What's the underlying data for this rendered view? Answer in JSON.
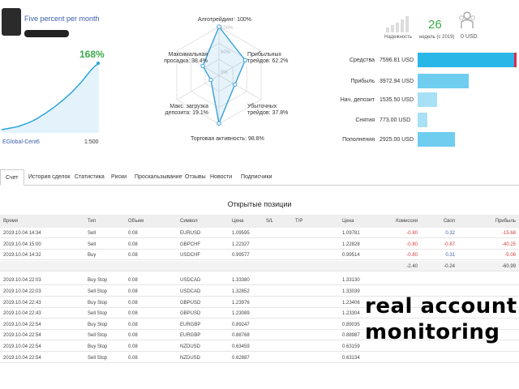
{
  "signal": {
    "title": "Five percent per month",
    "growth": "168%",
    "broker": "EGlobal-Cent6",
    "leverage": "1:500",
    "growth_curve": [
      0,
      2,
      4,
      6,
      9,
      13,
      17,
      22,
      28,
      35,
      42,
      50,
      58,
      67,
      76,
      86,
      96,
      108,
      120,
      134,
      148,
      160,
      168
    ]
  },
  "radar": {
    "labels": {
      "algo": "Алготрейдинг: 100%",
      "profit_trades": "Прибыльных трейдов: 62.2%",
      "loss_trades": "Убыточных трейдов: 37.8%",
      "activity": "Торговая активность: 98.8%",
      "deposit_load": "Макс. загрузка депозита: 19.1%",
      "drawdown": "Максимальная просадка: 38.4%"
    },
    "ring_labels": [
      "100%",
      "50%",
      "0%"
    ],
    "values": [
      1.0,
      0.622,
      0.378,
      0.988,
      0.191,
      0.384
    ],
    "color": "#3aa0d8"
  },
  "stats": {
    "reliability_label": "Надежность",
    "weeks_value": "26",
    "weeks_label": "недель (с 2019)",
    "subscribers_value": "0 USD",
    "accent": "#3caa4a"
  },
  "finance": [
    {
      "label": "Средства",
      "value": "7596.81 USD",
      "fraction": 1.0,
      "color": "#2bb6e8"
    },
    {
      "label": "Прибыль",
      "value": "3972.94 USD",
      "fraction": 0.52,
      "color": "#6fcdf0"
    },
    {
      "label": "Нач. депозит",
      "value": "1535.50 USD",
      "fraction": 0.2,
      "color": "#a8e0f6"
    },
    {
      "label": "Снятия",
      "value": "773.00 USD",
      "fraction": 0.1,
      "color": "#a8e0f6"
    },
    {
      "label": "Пополнения",
      "value": "2925.00 USD",
      "fraction": 0.38,
      "color": "#6fcdf0"
    }
  ],
  "tabs": [
    "Счет",
    "История сделок",
    "Статистика",
    "Риски",
    "Проскальзывание",
    "Отзывы",
    "Новости",
    "Подписчики"
  ],
  "positions_title": "Открытые позиции",
  "columns": [
    "Время",
    "Тип",
    "Объем",
    "Символ",
    "Цена",
    "S/L",
    "T/P",
    "Цена",
    "Комиссия",
    "Своп",
    "Прибыль"
  ],
  "open_positions": [
    [
      "2019.10.04 14:34",
      "Sell",
      "0.08",
      "EURUSD",
      "1.09595",
      "",
      "",
      "1.09781",
      "-0.80",
      "0.32",
      "-15.68"
    ],
    [
      "2019.10.04 15:00",
      "Sell",
      "0.08",
      "GBPCHF",
      "1.22327",
      "",
      "",
      "1.22828",
      "-0.80",
      "-0.87",
      "-40.25"
    ],
    [
      "2019.10.04 14:32",
      "Buy",
      "0.08",
      "USDCHF",
      "0.99577",
      "",
      "",
      "0.99514",
      "-0.80",
      "0.31",
      "-5.06"
    ]
  ],
  "totals": {
    "commission": "-2.40",
    "swap": "-0.24",
    "profit": "-60.99"
  },
  "pending_orders": [
    [
      "2019.10.04 22:03",
      "Buy Stop",
      "0.08",
      "USDCAD",
      "1.33380",
      "",
      "",
      "1.33130"
    ],
    [
      "2019.10.04 22:03",
      "Sell Stop",
      "0.08",
      "USDCAD",
      "1.32852",
      "",
      "",
      "1.33039"
    ],
    [
      "2019.10.04 22:43",
      "Buy Stop",
      "0.08",
      "GBPUSD",
      "1.23976",
      "",
      "",
      "1.23406"
    ],
    [
      "2019.10.04 22:43",
      "Sell Stop",
      "0.08",
      "GBPUSD",
      "1.23089",
      "",
      "",
      "1.23304"
    ],
    [
      "2019.10.04 22:54",
      "Buy Stop",
      "0.08",
      "EURGBP",
      "0.89247",
      "",
      "",
      "0.89035"
    ],
    [
      "2019.10.04 22:54",
      "Sell Stop",
      "0.08",
      "EURGBP",
      "0.88768",
      "",
      "",
      "0.88987"
    ],
    [
      "2019.10.04 22:54",
      "Buy Stop",
      "0.08",
      "NZDUSD",
      "0.63459",
      "",
      "",
      "0.63159"
    ],
    [
      "2019.10.04 22:54",
      "Sell Stop",
      "0.08",
      "NZDUSD",
      "0.62887",
      "",
      "",
      "0.63134"
    ]
  ],
  "overlay_text": [
    "real account",
    "monitoring"
  ]
}
